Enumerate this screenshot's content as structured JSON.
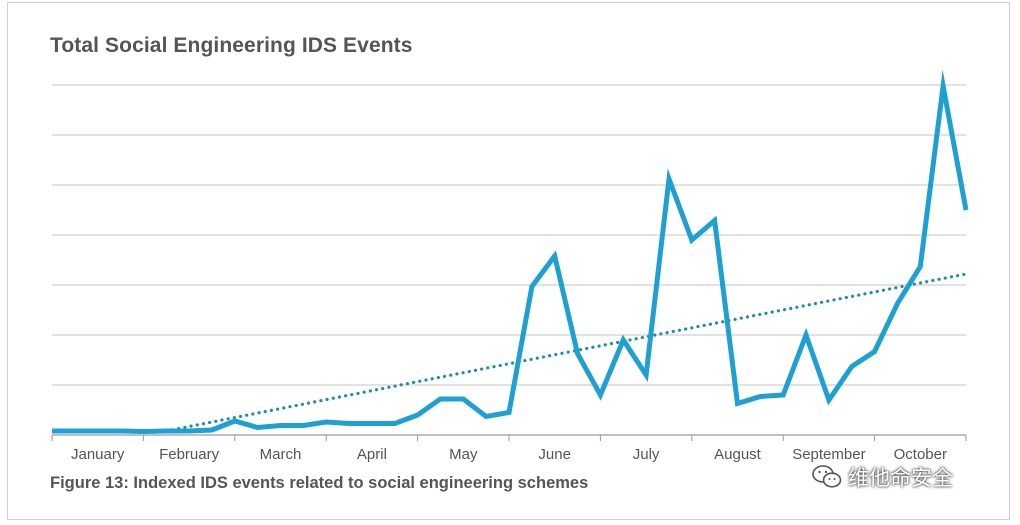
{
  "chart_data": {
    "type": "line",
    "title": "Total Social Engineering IDS Events",
    "caption": "Figure 13: Indexed IDS events related to social engineering schemes",
    "xlabel": "",
    "ylabel": "",
    "months": [
      "January",
      "February",
      "March",
      "April",
      "May",
      "June",
      "July",
      "August",
      "September",
      "October"
    ],
    "ylim": [
      0,
      7
    ],
    "y_tick_labels_shown": false,
    "grid": "horizontal",
    "legend": "none",
    "series": [
      {
        "style": "solid",
        "color": "#1ea0d2",
        "x": [
          0,
          0.5,
          1.0,
          1.5,
          2.0,
          2.5,
          3.0,
          3.5,
          4.0,
          4.5,
          5.0,
          5.5,
          6.0,
          6.5,
          7.0,
          7.5,
          8.0,
          8.5,
          9.0,
          9.5,
          10.0,
          10.5,
          11.0,
          11.5,
          12.0,
          12.5,
          13.0,
          13.5,
          14.0,
          14.5,
          15.0,
          15.5,
          16.0,
          16.5,
          17.0,
          17.5,
          18.0,
          18.5,
          19.0,
          19.5,
          20.0
        ],
        "y": [
          0.08,
          0.08,
          0.08,
          0.08,
          0.07,
          0.08,
          0.08,
          0.1,
          0.28,
          0.15,
          0.19,
          0.19,
          0.26,
          0.23,
          0.23,
          0.23,
          0.4,
          0.72,
          0.72,
          0.37,
          0.45,
          2.97,
          3.58,
          1.63,
          0.8,
          1.9,
          1.2,
          5.12,
          3.9,
          4.29,
          0.63,
          0.77,
          0.8,
          2.0,
          0.7,
          1.37,
          1.67,
          2.63,
          3.37,
          6.98,
          4.5
        ]
      },
      {
        "style": "dotted",
        "color": "#1a8fa3",
        "name_hint": "trend",
        "x": [
          2.5,
          20.0
        ],
        "y": [
          0.08,
          3.22
        ]
      }
    ]
  },
  "watermark": {
    "text": "维他命安全",
    "icon": "wechat-icon"
  }
}
